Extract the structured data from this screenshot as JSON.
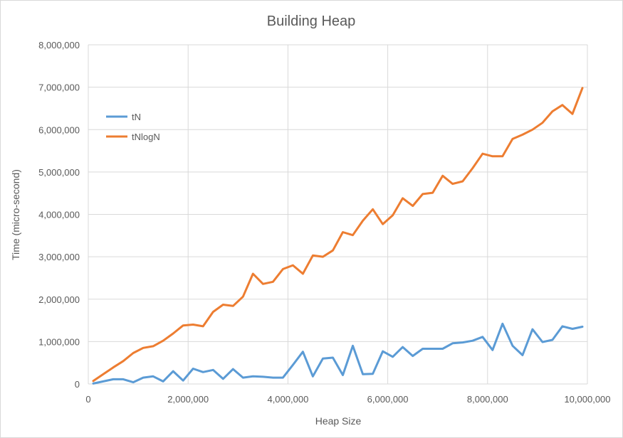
{
  "chart_data": {
    "type": "line",
    "title": "Building Heap",
    "xlabel": "Heap Size",
    "ylabel": "Time (micro-second)",
    "xlim": [
      0,
      10000000
    ],
    "ylim": [
      0,
      8000000
    ],
    "grid": true,
    "legend": "left, upper area",
    "x_ticks": [
      "0",
      "2,000,000",
      "4,000,000",
      "6,000,000",
      "8,000,000",
      "10,000,000"
    ],
    "y_ticks": [
      "0",
      "1,000,000",
      "2,000,000",
      "3,000,000",
      "4,000,000",
      "5,000,000",
      "6,000,000",
      "7,000,000",
      "8,000,000"
    ],
    "x": [
      100000,
      300000,
      500000,
      700000,
      900000,
      1100000,
      1300000,
      1500000,
      1700000,
      1900000,
      2100000,
      2300000,
      2500000,
      2700000,
      2900000,
      3100000,
      3300000,
      3500000,
      3700000,
      3900000,
      4100000,
      4300000,
      4500000,
      4700000,
      4900000,
      5100000,
      5300000,
      5500000,
      5700000,
      5900000,
      6100000,
      6300000,
      6500000,
      6700000,
      6900000,
      7100000,
      7300000,
      7500000,
      7700000,
      7900000,
      8100000,
      8300000,
      8500000,
      8700000,
      8900000,
      9100000,
      9300000,
      9500000,
      9700000,
      9900000
    ],
    "series": [
      {
        "name": "tN",
        "color": "#5b9bd5",
        "values": [
          10000,
          60000,
          110000,
          110000,
          40000,
          150000,
          180000,
          60000,
          300000,
          80000,
          360000,
          280000,
          330000,
          120000,
          350000,
          150000,
          180000,
          170000,
          150000,
          150000,
          450000,
          760000,
          180000,
          600000,
          620000,
          210000,
          900000,
          230000,
          240000,
          770000,
          640000,
          870000,
          660000,
          830000,
          830000,
          830000,
          960000,
          980000,
          1020000,
          1110000,
          800000,
          1420000,
          900000,
          680000,
          1290000,
          990000,
          1040000,
          1360000,
          1300000,
          1350000
        ]
      },
      {
        "name": "tNlogN",
        "color": "#ed7d31",
        "values": [
          70000,
          230000,
          390000,
          540000,
          730000,
          850000,
          890000,
          1020000,
          1190000,
          1380000,
          1400000,
          1360000,
          1700000,
          1870000,
          1840000,
          2060000,
          2600000,
          2360000,
          2410000,
          2710000,
          2800000,
          2600000,
          3030000,
          3000000,
          3150000,
          3580000,
          3510000,
          3850000,
          4120000,
          3770000,
          3980000,
          4380000,
          4200000,
          4480000,
          4510000,
          4910000,
          4720000,
          4780000,
          5090000,
          5430000,
          5370000,
          5370000,
          5780000,
          5880000,
          6000000,
          6160000,
          6430000,
          6580000,
          6370000,
          6980000
        ]
      }
    ]
  }
}
